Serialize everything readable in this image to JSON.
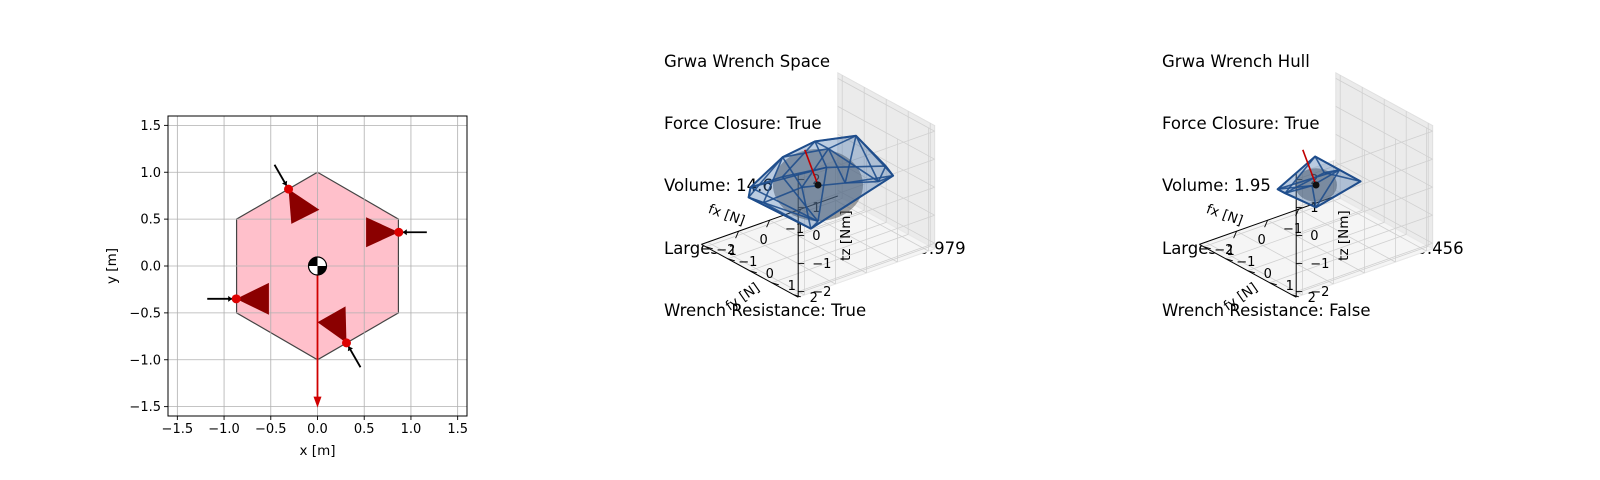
{
  "chart_data": [
    {
      "type": "scatter",
      "panel": "object-contacts",
      "xlabel": "x [m]",
      "ylabel": "y [m]",
      "xlim": [
        -1.6,
        1.6
      ],
      "ylim": [
        -1.6,
        1.6
      ],
      "xticks": [
        -1.5,
        -1.0,
        -0.5,
        0.0,
        0.5,
        1.0,
        1.5
      ],
      "yticks": [
        -1.5,
        -1.0,
        -0.5,
        0.0,
        0.5,
        1.0,
        1.5
      ],
      "xtick_labels": [
        "−1.5",
        "−1.0",
        "−0.5",
        "0.0",
        "0.5",
        "1.0",
        "1.5"
      ],
      "ytick_labels": [
        "−1.5",
        "−1.0",
        "−0.5",
        "0.0",
        "0.5",
        "1.0",
        "1.5"
      ],
      "grid": true,
      "object_polygon": [
        [
          0.0,
          1.0
        ],
        [
          0.866,
          0.5
        ],
        [
          0.866,
          -0.5
        ],
        [
          0.0,
          -1.0
        ],
        [
          -0.866,
          -0.5
        ],
        [
          -0.866,
          0.5
        ]
      ],
      "object_color": "#ffc0cb",
      "center_of_mass": [
        0.0,
        0.0
      ],
      "contacts": [
        {
          "point": [
            -0.31,
            0.82
          ],
          "force_start": [
            -0.46,
            1.08
          ],
          "cone_tip": [
            -0.31,
            0.82
          ],
          "cone_base": [
            [
              0.02,
              0.6
            ],
            [
              -0.28,
              0.45
            ]
          ]
        },
        {
          "point": [
            0.87,
            0.36
          ],
          "force_start": [
            1.17,
            0.36
          ],
          "cone_tip": [
            0.87,
            0.36
          ],
          "cone_base": [
            [
              0.52,
              0.52
            ],
            [
              0.52,
              0.2
            ]
          ]
        },
        {
          "point": [
            -0.87,
            -0.35
          ],
          "force_start": [
            -1.18,
            -0.35
          ],
          "cone_tip": [
            -0.87,
            -0.35
          ],
          "cone_base": [
            [
              -0.52,
              -0.18
            ],
            [
              -0.52,
              -0.52
            ]
          ]
        },
        {
          "point": [
            0.31,
            -0.82
          ],
          "force_start": [
            0.46,
            -1.08
          ],
          "cone_tip": [
            0.31,
            -0.82
          ],
          "cone_base": [
            [
              0.3,
              -0.43
            ],
            [
              0.0,
              -0.6
            ]
          ]
        }
      ],
      "external_wrench": {
        "start": [
          0.0,
          0.0
        ],
        "end": [
          0.0,
          -1.5
        ],
        "color": "#d00000"
      },
      "contact_color": "#dd0000",
      "cone_color": "#8b0000"
    },
    {
      "type": "3d-hull",
      "panel": "grwa-wrench-space",
      "title_lines": [
        "Grwa Wrench Space",
        "Force Closure: True",
        "Volume: 14.6",
        "Largest Min. Resisted Wrench: 0.979",
        "Wrench Resistance: True"
      ],
      "xlabel": "fx [N]",
      "ylabel": "fy [N]",
      "zlabel": "tz [Nm]",
      "xlim": [
        -2,
        2
      ],
      "ylim": [
        -2,
        2
      ],
      "zlim": [
        -2,
        2
      ],
      "xticks": [
        -1,
        0,
        1
      ],
      "xtick_labels": [
        "−1",
        "0",
        "1"
      ],
      "yticks": [
        -2,
        -1,
        0,
        1,
        2
      ],
      "ytick_labels": [
        "−2",
        "−1",
        "0",
        "1",
        "2"
      ],
      "zticks": [
        -2,
        -1,
        0,
        1,
        2
      ],
      "ztick_labels": [
        "−2",
        "−1",
        "0",
        "1",
        "2"
      ],
      "hull_vertices": [
        [
          -1.9,
          0.4,
          0.1
        ],
        [
          -1.5,
          1.3,
          0.3
        ],
        [
          -0.6,
          1.9,
          0.7
        ],
        [
          0.4,
          1.8,
          1.0
        ],
        [
          1.3,
          1.1,
          0.9
        ],
        [
          1.9,
          0.2,
          0.2
        ],
        [
          1.6,
          -0.9,
          -0.2
        ],
        [
          0.9,
          -1.8,
          -0.5
        ],
        [
          -0.2,
          -1.9,
          -0.6
        ],
        [
          -1.2,
          -1.3,
          -0.4
        ],
        [
          -0.8,
          0.6,
          1.7
        ],
        [
          0.3,
          0.9,
          1.8
        ],
        [
          1.0,
          -0.2,
          1.3
        ],
        [
          -0.4,
          -0.7,
          1.1
        ],
        [
          0.0,
          0.0,
          -1.3
        ],
        [
          0.8,
          0.8,
          -0.9
        ]
      ],
      "ball_radius": 0.979,
      "origin": [
        0,
        0,
        0
      ],
      "required_wrench": [
        0.0,
        -0.6,
        1.0
      ],
      "hull_color": "#1f4e8c",
      "ball_color": "#555555",
      "pane_color": "#f2f2f2"
    },
    {
      "type": "3d-hull",
      "panel": "grwa-wrench-hull",
      "title_lines": [
        "Grwa Wrench Hull",
        "Force Closure: True",
        "Volume: 1.95",
        "Largest Min. Resisted Wrench: 0.456",
        "Wrench Resistance: False"
      ],
      "xlabel": "fx [N]",
      "ylabel": "fy [N]",
      "zlabel": "tz [Nm]",
      "xlim": [
        -2,
        2
      ],
      "ylim": [
        -2,
        2
      ],
      "zlim": [
        -2,
        2
      ],
      "xticks": [
        -1,
        0,
        1
      ],
      "xtick_labels": [
        "−1",
        "0",
        "1"
      ],
      "yticks": [
        -2,
        -1,
        0,
        1,
        2
      ],
      "ytick_labels": [
        "−2",
        "−1",
        "0",
        "1",
        "2"
      ],
      "zticks": [
        -2,
        -1,
        0,
        1,
        2
      ],
      "ztick_labels": [
        "−2",
        "−1",
        "0",
        "1",
        "2"
      ],
      "hull_vertices": [
        [
          -0.8,
          0.9,
          0.2
        ],
        [
          -0.9,
          -0.2,
          0.1
        ],
        [
          0.3,
          0.8,
          0.9
        ],
        [
          1.0,
          0.0,
          0.1
        ],
        [
          0.6,
          -0.9,
          -0.3
        ],
        [
          -0.3,
          -0.6,
          -0.4
        ],
        [
          0.1,
          0.1,
          1.1
        ],
        [
          0.0,
          0.0,
          -0.8
        ]
      ],
      "ball_radius": 0.456,
      "origin": [
        0,
        0,
        0
      ],
      "required_wrench": [
        0.0,
        -0.6,
        1.0
      ],
      "hull_color": "#1f4e8c",
      "ball_color": "#555555",
      "pane_color": "#f2f2f2"
    }
  ]
}
